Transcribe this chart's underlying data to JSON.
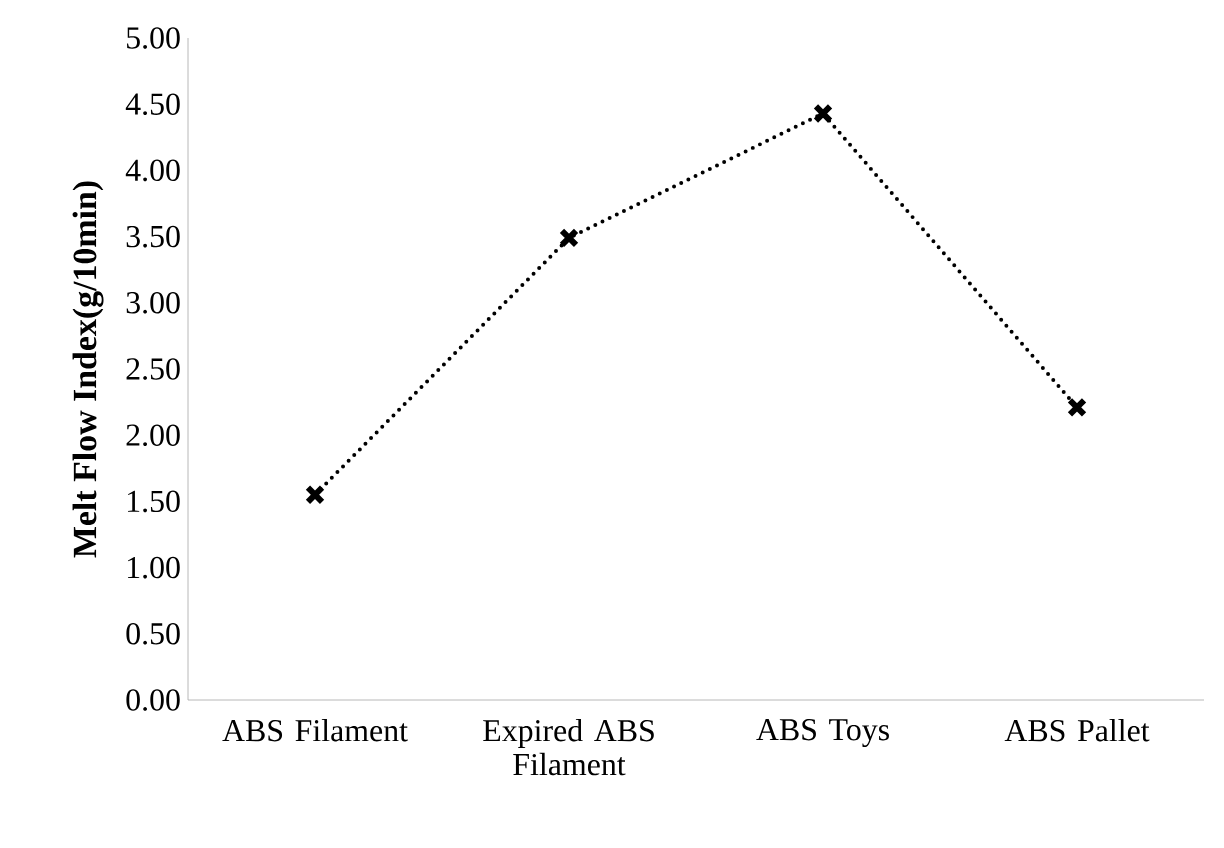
{
  "chart_data": {
    "type": "line",
    "ylabel": "Melt Flow Index(g/10min)",
    "categories": [
      "ABS Filament",
      "Expired ABS Filament",
      "ABS Toys",
      "ABS Pallet"
    ],
    "series": [
      {
        "color": "#000000",
        "values": [
          1.55,
          3.49,
          4.43,
          2.21
        ]
      }
    ],
    "ylim": [
      0,
      5
    ],
    "yticks": [
      {
        "value": 0,
        "label": "0.00"
      },
      {
        "value": 0.5,
        "label": "0.50"
      },
      {
        "value": 1,
        "label": "1.00"
      },
      {
        "value": 1.5,
        "label": "1.50"
      },
      {
        "value": 2,
        "label": "2.00"
      },
      {
        "value": 2.5,
        "label": "2.50"
      },
      {
        "value": 3,
        "label": "3.00"
      },
      {
        "value": 3.5,
        "label": "3.50"
      },
      {
        "value": 4,
        "label": "4.00"
      },
      {
        "value": 4.5,
        "label": "4.50"
      },
      {
        "value": 5,
        "label": "5.00"
      }
    ],
    "marker": "cross",
    "line_style": "dotted"
  }
}
